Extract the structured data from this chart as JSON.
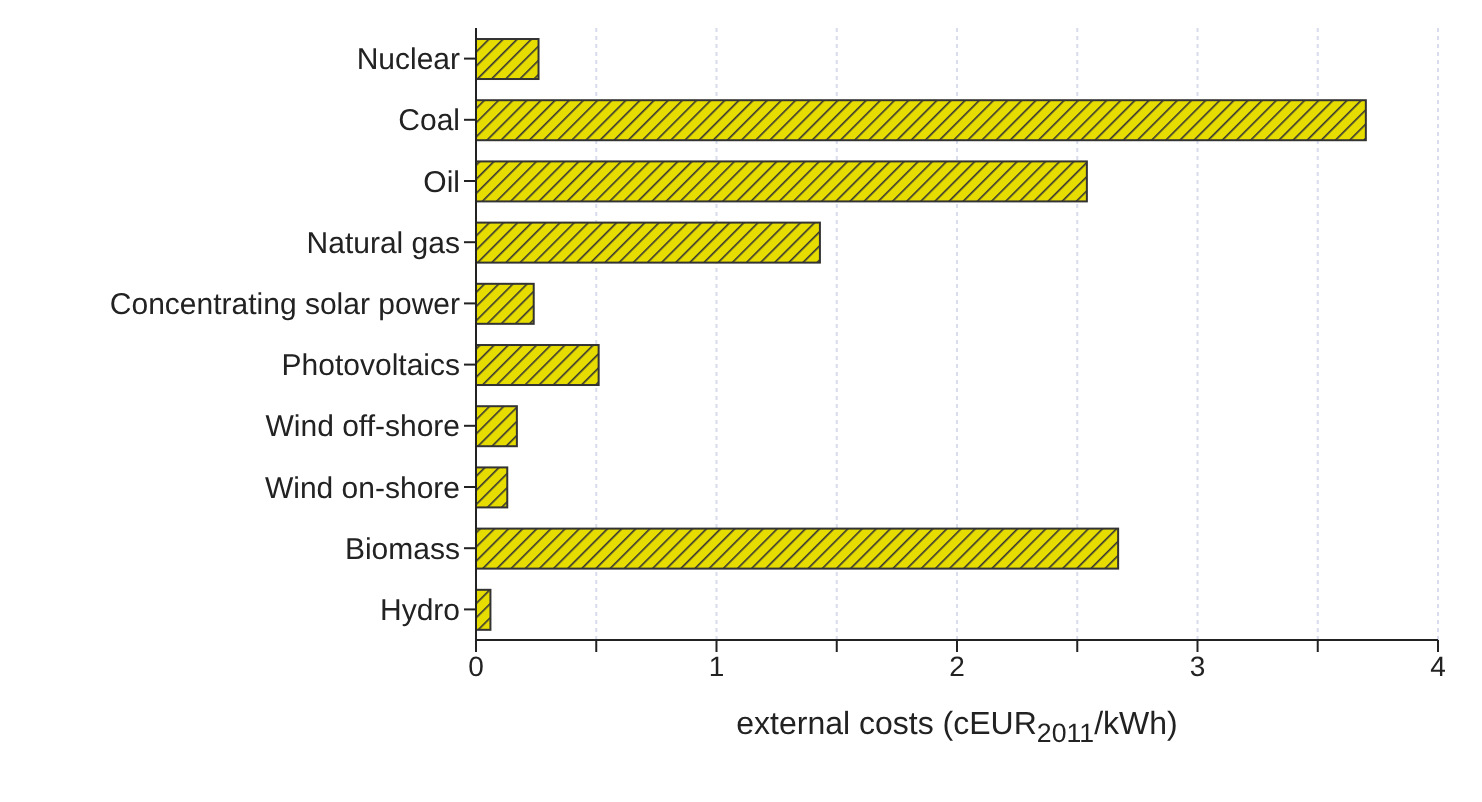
{
  "chart_data": {
    "type": "bar",
    "orientation": "horizontal",
    "xlabel": "external costs (cEUR$_{2011}$/kWh)",
    "categories": [
      "Nuclear",
      "Coal",
      "Oil",
      "Natural gas",
      "Concentrating solar power",
      "Photovoltaics",
      "Wind off-shore",
      "Wind on-shore",
      "Biomass",
      "Hydro"
    ],
    "values": [
      0.26,
      3.7,
      2.54,
      1.43,
      0.24,
      0.51,
      0.17,
      0.13,
      2.67,
      0.06
    ],
    "color": "#e6dc00",
    "xlim": [
      0,
      4
    ],
    "xticks": [
      0,
      {
        "value": 0.5,
        "label": null
      },
      1,
      {
        "value": 1.5,
        "label": null
      },
      2,
      {
        "value": 2.5,
        "label": null
      },
      3,
      {
        "value": 3.5,
        "label": null
      },
      4
    ],
    "grid": "x"
  }
}
